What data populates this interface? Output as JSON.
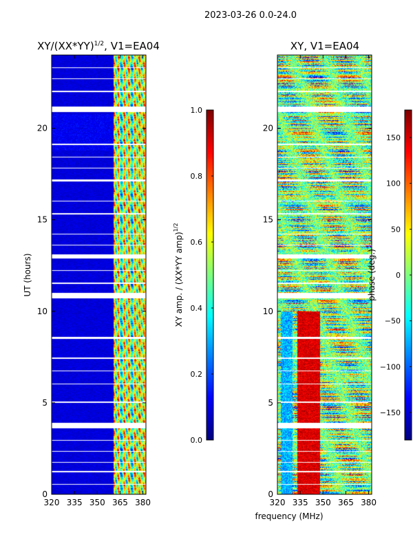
{
  "suptitle": "2023-03-26 0.0-24.0",
  "common_xlabel": "frequency (MHz)",
  "colors": {
    "jet": [
      "#00007f",
      "#0000ff",
      "#007fff",
      "#00ffff",
      "#7fff7f",
      "#ffff00",
      "#ff7f00",
      "#ff0000",
      "#7f0000"
    ],
    "gap": "#ffffff"
  },
  "chart_data": [
    {
      "type": "heatmap",
      "id": "amp",
      "title": "XY/(XX*YY)",
      "title_sup": "1/2",
      "title_suffix": ", V1=EA04",
      "xlabel": "",
      "ylabel": "UT (hours)",
      "xlim": [
        320,
        382
      ],
      "ylim": [
        0,
        24
      ],
      "xticks": [
        320,
        335,
        350,
        365,
        380
      ],
      "yticks": [
        0,
        5,
        10,
        15,
        20
      ],
      "pattern": "amp",
      "band_channels_MHz": [
        361,
        364,
        368,
        371,
        375,
        378,
        381
      ],
      "colorbar": {
        "label": "XY amp. / (XX*YY amp)",
        "label_sup": "1/2",
        "range": [
          0.0,
          1.0
        ],
        "ticks": [
          "0.0",
          "0.2",
          "0.4",
          "0.6",
          "0.8",
          "1.0"
        ]
      }
    },
    {
      "type": "heatmap",
      "id": "phase",
      "title": "XY, V1=EA04",
      "xlabel": "frequency (MHz)",
      "ylabel": "",
      "xlim": [
        320,
        382
      ],
      "ylim": [
        0,
        24
      ],
      "xticks": [
        320,
        335,
        350,
        365,
        380
      ],
      "yticks": [
        0,
        5,
        10,
        15,
        20
      ],
      "pattern": "phase",
      "colorbar": {
        "label": "phase (deg.)",
        "range": [
          -180,
          180
        ],
        "ticks": [
          "−150",
          "−100",
          "−50",
          "0",
          "50",
          "100",
          "150"
        ],
        "tick_values": [
          -150,
          -100,
          -50,
          0,
          50,
          100,
          150
        ]
      }
    }
  ],
  "flagged_gaps_UT": [
    [
      3.6,
      3.9
    ],
    [
      10.7,
      11.0
    ],
    [
      12.9,
      13.1
    ],
    [
      20.9,
      21.2
    ],
    [
      0.5,
      0.55
    ],
    [
      1.2,
      1.25
    ],
    [
      1.7,
      1.75
    ],
    [
      2.3,
      2.35
    ],
    [
      2.9,
      2.95
    ],
    [
      5.0,
      5.05
    ],
    [
      6.0,
      6.05
    ],
    [
      6.7,
      6.75
    ],
    [
      7.4,
      7.45
    ],
    [
      8.5,
      8.6
    ],
    [
      11.5,
      11.55
    ],
    [
      12.2,
      12.25
    ],
    [
      13.6,
      13.65
    ],
    [
      14.2,
      14.25
    ],
    [
      15.3,
      15.35
    ],
    [
      16.0,
      16.05
    ],
    [
      17.1,
      17.2
    ],
    [
      17.8,
      17.85
    ],
    [
      18.4,
      18.45
    ],
    [
      19.1,
      19.15
    ],
    [
      22.0,
      22.05
    ],
    [
      22.7,
      22.75
    ],
    [
      23.3,
      23.35
    ]
  ]
}
